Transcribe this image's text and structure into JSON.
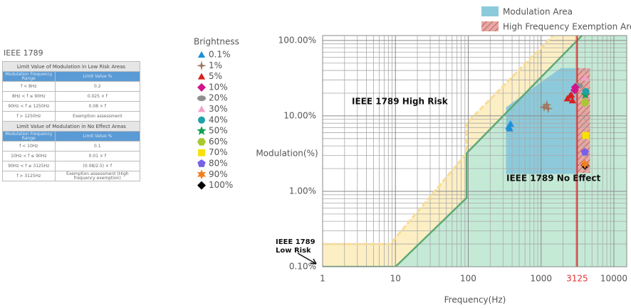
{
  "table": {
    "title": "IEEE 1789",
    "sections": [
      {
        "title": "Limit Value of Modulation in Low Risk Areas",
        "header": [
          "Modulation Frequency Range",
          "Limit Value %"
        ],
        "rows": [
          [
            "f < 8Hz",
            "0.2"
          ],
          [
            "8Hz < f ≤ 90Hz",
            "0.025 × f"
          ],
          [
            "90Hz < f ≤ 1250Hz",
            "0.08 × f"
          ],
          [
            "f > 1250Hz",
            "Exemption assessment"
          ]
        ]
      },
      {
        "title": "Limit Value of Modulation in No Effect Areas",
        "header": [
          "Modulation Frequency Range",
          "Limit Value %"
        ],
        "rows": [
          [
            "f < 10Hz",
            "0.1"
          ],
          [
            "10Hz < f ≤ 90Hz",
            "0.01 × f"
          ],
          [
            "90Hz < f ≤ 3125Hz",
            "(0.08/2.5) × f"
          ],
          [
            "f > 3125Hz",
            "Exemption assessment (High frequency exemption)"
          ]
        ]
      }
    ]
  },
  "chart_data": {
    "type": "scatter",
    "x_label": "Frequency(Hz)",
    "y_label": "Modulation(%)",
    "log_x": true,
    "log_y": true,
    "grid": true,
    "minor_grid": true,
    "xlim": [
      1,
      15000
    ],
    "ylim": [
      0.1,
      116
    ],
    "xticks": [
      1,
      10,
      100,
      1000,
      3125,
      10000
    ],
    "yticks": [
      {
        "value": 0.1,
        "label": "0.10%"
      },
      {
        "value": 1,
        "label": "1.00%"
      },
      {
        "value": 10,
        "label": "10.00%"
      },
      {
        "value": 100,
        "label": "100.00%"
      }
    ],
    "legend_title": "Brightness",
    "exemption_frequency": 3125,
    "exemption_color": "#e03030",
    "annotations": [
      "IEEE 1789 High Risk",
      "IEEE 1789 No Effect"
    ],
    "low_risk_label": [
      "IEEE 1789",
      "Low Risk"
    ],
    "boundaries": [
      {
        "fill": "#fdefc4",
        "color": "#f8dc98",
        "x": [
          1,
          8.5,
          95,
          95,
          1250
        ],
        "y": [
          0.2,
          0.2,
          3.2,
          8,
          100
        ]
      },
      {
        "fill": "#c4ead6",
        "color": "#5fa875",
        "x": [
          1,
          10,
          95,
          95,
          3125
        ],
        "y": [
          0.1,
          0.1,
          0.82,
          3.2,
          100
        ]
      }
    ],
    "areas": [
      {
        "name": "Modulation Area",
        "color": "#8ccadb",
        "x": [
          330,
          330,
          1870,
          3125,
          3125
        ],
        "y": [
          1.7,
          13,
          43,
          43,
          1.7
        ]
      },
      {
        "name": "High Frequency Exemption Area",
        "color": "#e6a9a4",
        "hatch": "#c06060",
        "x": [
          3125,
          3125,
          4700,
          4700
        ],
        "y": [
          1.75,
          43,
          43,
          1.75
        ]
      }
    ],
    "series": [
      {
        "name": "0.1%",
        "color": "#1e90d6",
        "marker": "triangle",
        "x": [
          360,
          380,
          370
        ],
        "y": [
          7.2,
          7.8,
          6.8
        ]
      },
      {
        "name": "1%",
        "color": "#a07860",
        "marker": "star4",
        "x": [
          1100,
          1200,
          1250
        ],
        "y": [
          13,
          14,
          12.5
        ]
      },
      {
        "name": "5%",
        "color": "#d62020",
        "marker": "triangle",
        "x": [
          2300,
          2500,
          2700,
          2600
        ],
        "y": [
          17,
          18.5,
          16,
          19
        ]
      },
      {
        "name": "10%",
        "color": "#d0148c",
        "marker": "diamond",
        "x": [
          2900,
          2950
        ],
        "y": [
          22,
          24
        ]
      },
      {
        "name": "20%",
        "color": "#909090",
        "marker": "ellipse",
        "x": [
          3300
        ],
        "y": [
          25
        ]
      },
      {
        "name": "30%",
        "color": "#f4a0c8",
        "marker": "triangle",
        "x": [
          4000
        ],
        "y": [
          32
        ]
      },
      {
        "name": "40%",
        "color": "#20a0a8",
        "marker": "circle",
        "x": [
          4100
        ],
        "y": [
          21
        ]
      },
      {
        "name": "50%",
        "color": "#10a050",
        "marker": "star5",
        "x": [
          4050
        ],
        "y": [
          19
        ]
      },
      {
        "name": "60%",
        "color": "#a8c830",
        "marker": "hexagon",
        "x": [
          4000
        ],
        "y": [
          15
        ]
      },
      {
        "name": "70%",
        "color": "#f8e000",
        "marker": "square",
        "x": [
          4100
        ],
        "y": [
          5.5
        ]
      },
      {
        "name": "80%",
        "color": "#7860e8",
        "marker": "pentagon",
        "x": [
          4000
        ],
        "y": [
          3.3
        ]
      },
      {
        "name": "90%",
        "color": "#f08020",
        "marker": "star6",
        "x": [
          4000
        ],
        "y": [
          2.3
        ]
      },
      {
        "name": "100%",
        "color": "#000000",
        "marker": "diamond",
        "x": [
          4000
        ],
        "y": [
          2.2
        ]
      }
    ]
  }
}
